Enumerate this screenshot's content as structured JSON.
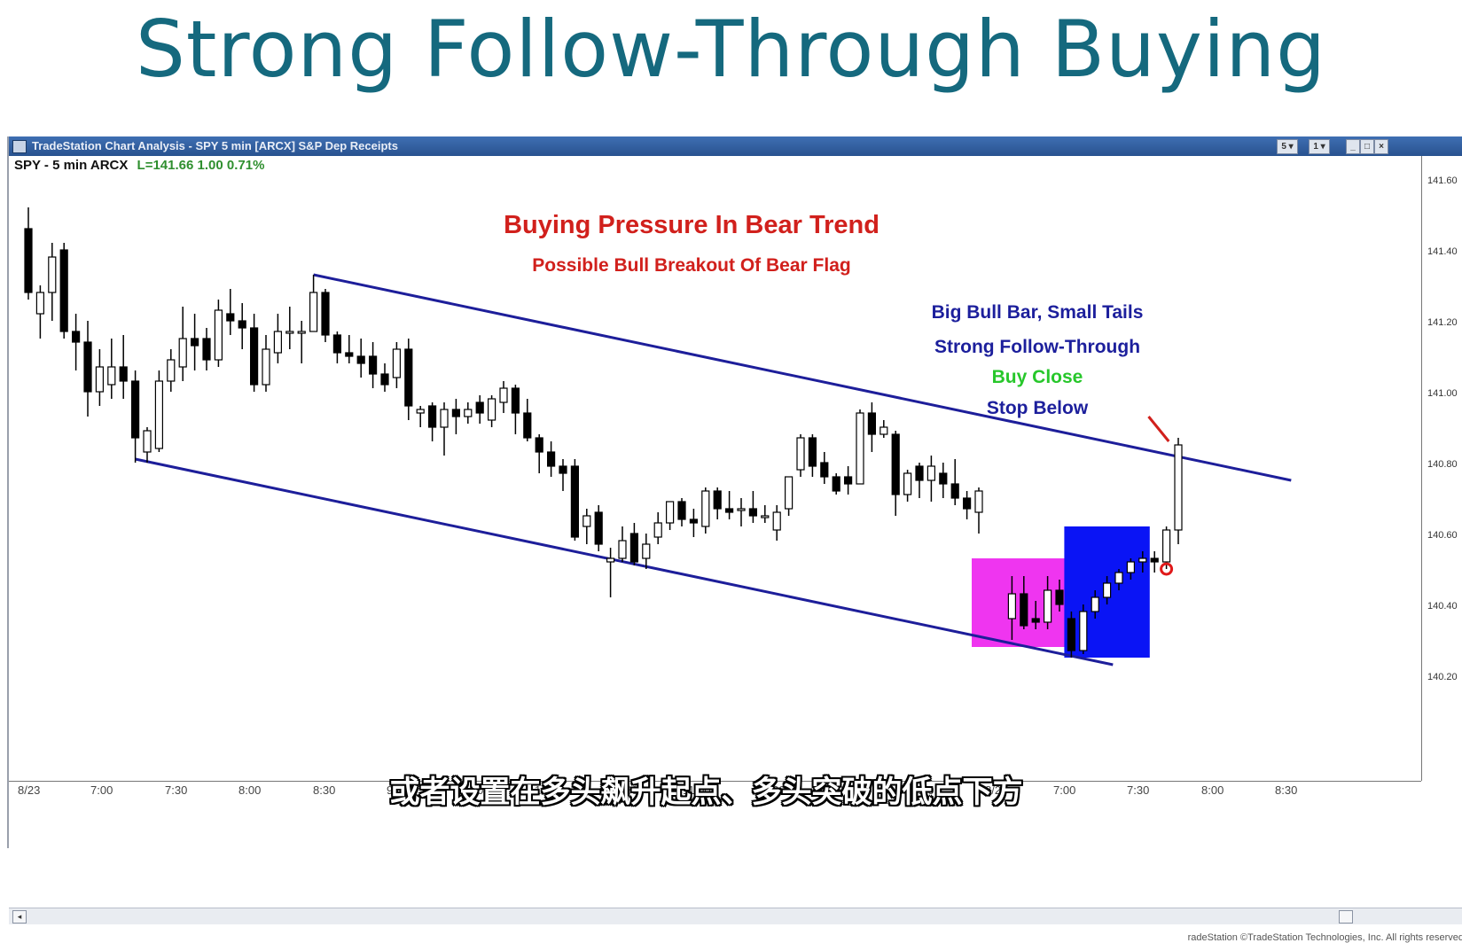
{
  "slide": {
    "title": "Strong Follow-Through Buying",
    "subtitle": "或者设置在多头飙升起点、多头突破的低点下方"
  },
  "window": {
    "title": "TradeStation Chart Analysis - SPY 5 min [ARCX] S&P Dep Receipts",
    "buttons": [
      "5 ▾",
      "1 ▾"
    ],
    "controls": [
      "_",
      "□",
      "×"
    ]
  },
  "symbol_bar": {
    "symbol": "SPY - 5 min  ARCX",
    "last": "L=141.66  1.00  0.71%"
  },
  "annotations": {
    "headline": "Buying Pressure In Bear Trend",
    "subhead": "Possible Bull Breakout Of Bear Flag",
    "note1": "Big Bull Bar, Small Tails",
    "note2": "Strong Follow-Through",
    "note3": "Buy Close",
    "note4": "Stop Below",
    "colors": {
      "red": "#d1201c",
      "navy": "#1c1f9c",
      "green": "#27c72b",
      "magenta": "#ef35f0",
      "blue": "#0a14f5",
      "channel": "#1d1e9a"
    }
  },
  "price_axis": [
    "141.60",
    "141.40",
    "141.20",
    "141.00",
    "140.80",
    "140.60",
    "140.40",
    "140.20"
  ],
  "time_axis": [
    "8/23",
    "7:00",
    "7:30",
    "8:00",
    "8:30",
    "9:00",
    "9:30",
    "10:00",
    "10:30",
    "11:00",
    "11:30",
    "12:00",
    "12:30",
    "8/24",
    "7:00",
    "7:30",
    "8:00",
    "8:30"
  ],
  "copyright": "radeStation  ©TradeStation Technologies, Inc. All rights reserved",
  "chart_data": {
    "type": "candlestick",
    "ylim": [
      140.1,
      141.65
    ],
    "candles": [
      {
        "o": 141.46,
        "h": 141.52,
        "l": 141.26,
        "c": 141.28
      },
      {
        "o": 141.22,
        "h": 141.3,
        "l": 141.15,
        "c": 141.28
      },
      {
        "o": 141.28,
        "h": 141.42,
        "l": 141.2,
        "c": 141.38
      },
      {
        "o": 141.4,
        "h": 141.42,
        "l": 141.15,
        "c": 141.17
      },
      {
        "o": 141.17,
        "h": 141.22,
        "l": 141.06,
        "c": 141.14
      },
      {
        "o": 141.14,
        "h": 141.2,
        "l": 140.93,
        "c": 141.0
      },
      {
        "o": 141.0,
        "h": 141.12,
        "l": 140.96,
        "c": 141.07
      },
      {
        "o": 141.02,
        "h": 141.15,
        "l": 140.98,
        "c": 141.07
      },
      {
        "o": 141.07,
        "h": 141.16,
        "l": 140.98,
        "c": 141.03
      },
      {
        "o": 141.03,
        "h": 141.06,
        "l": 140.8,
        "c": 140.87
      },
      {
        "o": 140.83,
        "h": 140.9,
        "l": 140.8,
        "c": 140.89
      },
      {
        "o": 140.84,
        "h": 141.06,
        "l": 140.83,
        "c": 141.03
      },
      {
        "o": 141.03,
        "h": 141.12,
        "l": 141.0,
        "c": 141.09
      },
      {
        "o": 141.07,
        "h": 141.24,
        "l": 141.03,
        "c": 141.15
      },
      {
        "o": 141.15,
        "h": 141.22,
        "l": 141.06,
        "c": 141.13
      },
      {
        "o": 141.15,
        "h": 141.18,
        "l": 141.06,
        "c": 141.09
      },
      {
        "o": 141.09,
        "h": 141.26,
        "l": 141.07,
        "c": 141.23
      },
      {
        "o": 141.22,
        "h": 141.29,
        "l": 141.16,
        "c": 141.2
      },
      {
        "o": 141.2,
        "h": 141.25,
        "l": 141.12,
        "c": 141.18
      },
      {
        "o": 141.18,
        "h": 141.22,
        "l": 141.0,
        "c": 141.02
      },
      {
        "o": 141.02,
        "h": 141.16,
        "l": 141.0,
        "c": 141.12
      },
      {
        "o": 141.11,
        "h": 141.22,
        "l": 141.08,
        "c": 141.17
      },
      {
        "o": 141.17,
        "h": 141.24,
        "l": 141.12,
        "c": 141.17
      },
      {
        "o": 141.17,
        "h": 141.2,
        "l": 141.08,
        "c": 141.17
      },
      {
        "o": 141.17,
        "h": 141.33,
        "l": 141.17,
        "c": 141.28
      },
      {
        "o": 141.28,
        "h": 141.29,
        "l": 141.14,
        "c": 141.16
      },
      {
        "o": 141.16,
        "h": 141.17,
        "l": 141.08,
        "c": 141.11
      },
      {
        "o": 141.11,
        "h": 141.16,
        "l": 141.08,
        "c": 141.1
      },
      {
        "o": 141.1,
        "h": 141.15,
        "l": 141.04,
        "c": 141.08
      },
      {
        "o": 141.1,
        "h": 141.14,
        "l": 141.01,
        "c": 141.05
      },
      {
        "o": 141.05,
        "h": 141.08,
        "l": 141.0,
        "c": 141.02
      },
      {
        "o": 141.04,
        "h": 141.14,
        "l": 141.01,
        "c": 141.12
      },
      {
        "o": 141.12,
        "h": 141.15,
        "l": 140.92,
        "c": 140.96
      },
      {
        "o": 140.94,
        "h": 140.96,
        "l": 140.9,
        "c": 140.95
      },
      {
        "o": 140.96,
        "h": 140.97,
        "l": 140.86,
        "c": 140.9
      },
      {
        "o": 140.9,
        "h": 140.97,
        "l": 140.82,
        "c": 140.95
      },
      {
        "o": 140.95,
        "h": 140.98,
        "l": 140.88,
        "c": 140.93
      },
      {
        "o": 140.93,
        "h": 140.97,
        "l": 140.91,
        "c": 140.95
      },
      {
        "o": 140.97,
        "h": 140.99,
        "l": 140.91,
        "c": 140.94
      },
      {
        "o": 140.92,
        "h": 140.99,
        "l": 140.9,
        "c": 140.98
      },
      {
        "o": 140.97,
        "h": 141.03,
        "l": 140.94,
        "c": 141.01
      },
      {
        "o": 141.01,
        "h": 141.02,
        "l": 140.88,
        "c": 140.94
      },
      {
        "o": 140.94,
        "h": 140.98,
        "l": 140.86,
        "c": 140.87
      },
      {
        "o": 140.87,
        "h": 140.88,
        "l": 140.77,
        "c": 140.83
      },
      {
        "o": 140.83,
        "h": 140.86,
        "l": 140.76,
        "c": 140.79
      },
      {
        "o": 140.79,
        "h": 140.81,
        "l": 140.72,
        "c": 140.77
      },
      {
        "o": 140.79,
        "h": 140.81,
        "l": 140.58,
        "c": 140.59
      },
      {
        "o": 140.62,
        "h": 140.67,
        "l": 140.57,
        "c": 140.65
      },
      {
        "o": 140.66,
        "h": 140.68,
        "l": 140.55,
        "c": 140.57
      },
      {
        "o": 140.52,
        "h": 140.56,
        "l": 140.42,
        "c": 140.53
      },
      {
        "o": 140.53,
        "h": 140.62,
        "l": 140.52,
        "c": 140.58
      },
      {
        "o": 140.6,
        "h": 140.63,
        "l": 140.51,
        "c": 140.52
      },
      {
        "o": 140.53,
        "h": 140.6,
        "l": 140.5,
        "c": 140.57
      },
      {
        "o": 140.59,
        "h": 140.66,
        "l": 140.57,
        "c": 140.63
      },
      {
        "o": 140.63,
        "h": 140.69,
        "l": 140.61,
        "c": 140.69
      },
      {
        "o": 140.69,
        "h": 140.7,
        "l": 140.62,
        "c": 140.64
      },
      {
        "o": 140.64,
        "h": 140.67,
        "l": 140.59,
        "c": 140.63
      },
      {
        "o": 140.62,
        "h": 140.73,
        "l": 140.6,
        "c": 140.72
      },
      {
        "o": 140.72,
        "h": 140.73,
        "l": 140.64,
        "c": 140.67
      },
      {
        "o": 140.67,
        "h": 140.72,
        "l": 140.64,
        "c": 140.66
      },
      {
        "o": 140.67,
        "h": 140.7,
        "l": 140.62,
        "c": 140.67
      },
      {
        "o": 140.67,
        "h": 140.72,
        "l": 140.63,
        "c": 140.65
      },
      {
        "o": 140.65,
        "h": 140.68,
        "l": 140.63,
        "c": 140.65
      },
      {
        "o": 140.61,
        "h": 140.68,
        "l": 140.58,
        "c": 140.66
      },
      {
        "o": 140.67,
        "h": 140.76,
        "l": 140.65,
        "c": 140.76
      },
      {
        "o": 140.78,
        "h": 140.88,
        "l": 140.76,
        "c": 140.87
      },
      {
        "o": 140.87,
        "h": 140.88,
        "l": 140.76,
        "c": 140.79
      },
      {
        "o": 140.8,
        "h": 140.83,
        "l": 140.74,
        "c": 140.76
      },
      {
        "o": 140.76,
        "h": 140.77,
        "l": 140.71,
        "c": 140.72
      },
      {
        "o": 140.76,
        "h": 140.79,
        "l": 140.71,
        "c": 140.74
      },
      {
        "o": 140.74,
        "h": 140.95,
        "l": 140.74,
        "c": 140.94
      },
      {
        "o": 140.94,
        "h": 140.97,
        "l": 140.83,
        "c": 140.88
      },
      {
        "o": 140.88,
        "h": 140.92,
        "l": 140.87,
        "c": 140.9
      },
      {
        "o": 140.88,
        "h": 140.89,
        "l": 140.65,
        "c": 140.71
      },
      {
        "o": 140.71,
        "h": 140.78,
        "l": 140.69,
        "c": 140.77
      },
      {
        "o": 140.79,
        "h": 140.8,
        "l": 140.7,
        "c": 140.75
      },
      {
        "o": 140.75,
        "h": 140.82,
        "l": 140.69,
        "c": 140.79
      },
      {
        "o": 140.77,
        "h": 140.8,
        "l": 140.7,
        "c": 140.74
      },
      {
        "o": 140.74,
        "h": 140.81,
        "l": 140.68,
        "c": 140.7
      },
      {
        "o": 140.7,
        "h": 140.72,
        "l": 140.64,
        "c": 140.67
      },
      {
        "o": 140.66,
        "h": 140.73,
        "l": 140.6,
        "c": 140.72
      },
      {
        "o": 140.36,
        "h": 140.48,
        "l": 140.3,
        "c": 140.43
      },
      {
        "o": 140.43,
        "h": 140.48,
        "l": 140.33,
        "c": 140.34
      },
      {
        "o": 140.36,
        "h": 140.41,
        "l": 140.33,
        "c": 140.35
      },
      {
        "o": 140.35,
        "h": 140.48,
        "l": 140.33,
        "c": 140.44
      },
      {
        "o": 140.44,
        "h": 140.47,
        "l": 140.38,
        "c": 140.4
      },
      {
        "o": 140.36,
        "h": 140.38,
        "l": 140.25,
        "c": 140.27
      },
      {
        "o": 140.27,
        "h": 140.4,
        "l": 140.26,
        "c": 140.38
      },
      {
        "o": 140.38,
        "h": 140.44,
        "l": 140.36,
        "c": 140.42
      },
      {
        "o": 140.42,
        "h": 140.48,
        "l": 140.4,
        "c": 140.46
      },
      {
        "o": 140.46,
        "h": 140.5,
        "l": 140.44,
        "c": 140.49
      },
      {
        "o": 140.49,
        "h": 140.53,
        "l": 140.47,
        "c": 140.52
      },
      {
        "o": 140.52,
        "h": 140.55,
        "l": 140.49,
        "c": 140.53
      },
      {
        "o": 140.53,
        "h": 140.55,
        "l": 140.49,
        "c": 140.52
      },
      {
        "o": 140.52,
        "h": 140.62,
        "l": 140.5,
        "c": 140.61
      },
      {
        "o": 140.61,
        "h": 140.87,
        "l": 140.57,
        "c": 140.85
      }
    ],
    "gap_after_index": 80,
    "channel_upper": {
      "from": [
        24,
        141.33
      ],
      "to": [
        104.5,
        140.75
      ]
    },
    "channel_lower": {
      "from": [
        9,
        140.81
      ],
      "to": [
        89.5,
        140.23
      ]
    },
    "highlight_boxes": [
      {
        "from_index": 80,
        "to_index": 85,
        "low": 140.28,
        "high": 140.53,
        "color": "magenta"
      },
      {
        "from_index": 86,
        "to_index": 92,
        "low": 140.25,
        "high": 140.62,
        "color": "blue"
      }
    ],
    "signal_circle": {
      "index": 94,
      "price": 140.5
    },
    "pointer_line": {
      "from": [
        92.5,
        140.93
      ],
      "to": [
        94.2,
        140.86
      ]
    }
  }
}
